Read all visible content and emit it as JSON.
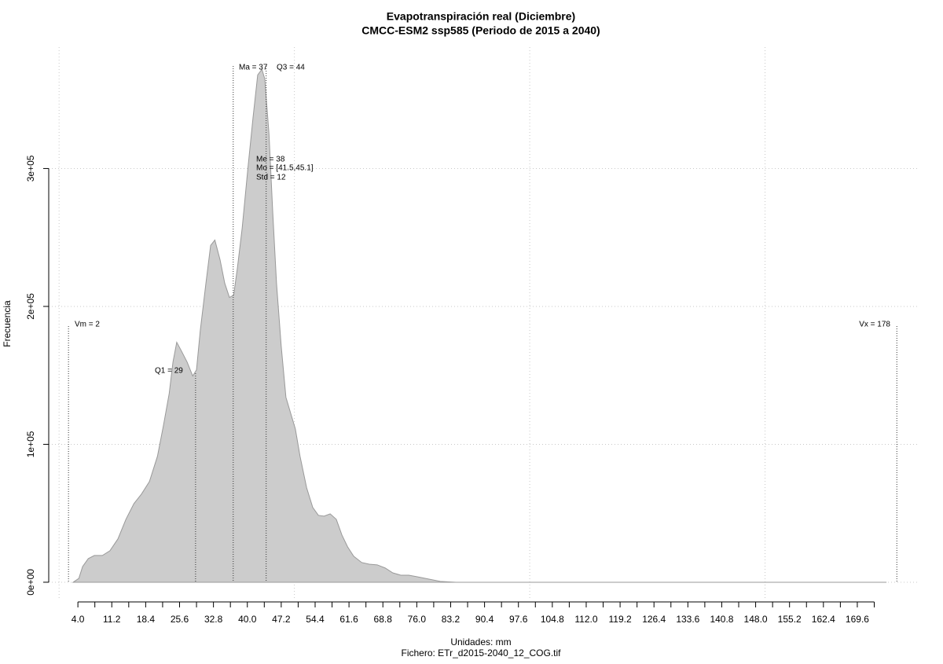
{
  "chart_data": {
    "type": "area",
    "title": "Evapotranspiración real (Diciembre)",
    "subtitle": "CMCC-ESM2 ssp585 (Periodo de 2015 a 2040)",
    "x_label": "Unidades: mm",
    "caption": "Fichero: ETr_d2015-2040_12_COG.tif",
    "y_label": "Frecuencia",
    "color": "#cccccc",
    "x": [
      3.0,
      4.2,
      5.0,
      6.2,
      7.5,
      9.2,
      10.8,
      12.5,
      14.2,
      15.9,
      17.5,
      19.2,
      20.9,
      22.2,
      23.4,
      24.2,
      25.0,
      25.9,
      27.2,
      28.4,
      29.2,
      30.0,
      31.2,
      32.2,
      33.1,
      34.2,
      35.2,
      36.2,
      37.1,
      37.9,
      38.9,
      40.1,
      41.2,
      42.2,
      43.1,
      43.7,
      44.6,
      45.4,
      46.2,
      47.2,
      48.2,
      49.2,
      50.2,
      51.2,
      52.6,
      53.9,
      55.1,
      56.3,
      57.6,
      58.9,
      60.1,
      61.3,
      62.6,
      64.3,
      65.9,
      67.6,
      69.3,
      70.9,
      72.6,
      74.3,
      76.0,
      78.5,
      81.0,
      84.3,
      91.0,
      104.3,
      137.7,
      175.8
    ],
    "values": [
      0,
      2800,
      11400,
      17100,
      19400,
      19400,
      22800,
      31400,
      45600,
      57000,
      63900,
      73000,
      91300,
      114100,
      136900,
      159700,
      174000,
      168300,
      159700,
      149500,
      154000,
      182500,
      216800,
      244200,
      248100,
      233900,
      216800,
      206500,
      208200,
      228200,
      256700,
      299500,
      336600,
      367900,
      371900,
      365100,
      325200,
      268100,
      216800,
      171100,
      134100,
      122600,
      111200,
      91300,
      68500,
      54200,
      48500,
      47900,
      49600,
      45600,
      34200,
      25700,
      18800,
      14300,
      13100,
      12600,
      10300,
      6800,
      5100,
      5100,
      4000,
      2300,
      600,
      0,
      0,
      0,
      0,
      0
    ],
    "xlim": [
      -2.2,
      182.8
    ],
    "ylim": [
      -12000,
      388000
    ],
    "xticks": [
      {
        "value": 4.0,
        "label": "4.0"
      },
      11.2,
      18.4,
      25.6,
      32.8,
      {
        "value": 40.0,
        "label": "40.0"
      },
      47.2,
      54.4,
      61.6,
      68.8,
      {
        "value": 76.0,
        "label": "76.0"
      },
      83.2,
      90.4,
      97.6,
      104.8,
      {
        "value": 112.0,
        "label": "112.0"
      },
      119.2,
      126.4,
      133.6,
      140.8,
      {
        "value": 148.0,
        "label": "148.0"
      },
      155.2,
      162.4,
      169.6
    ],
    "xminorticks": [
      7.6,
      14.8,
      22.0,
      29.2,
      36.4,
      43.6,
      50.8,
      58.0,
      65.2,
      72.4,
      79.6,
      86.8,
      94.0,
      101.2,
      108.4,
      115.6,
      122.8,
      130.0,
      137.2,
      144.4,
      151.6,
      158.8,
      166.0,
      173.2
    ],
    "yticks": [
      {
        "value": 0,
        "label": "0e+00"
      },
      {
        "value": 100000,
        "label": "1e+05"
      },
      {
        "value": 200000,
        "label": "2e+05"
      },
      {
        "value": 300000,
        "label": "3e+05"
      }
    ],
    "xgrid": [
      0,
      50,
      100,
      150
    ],
    "grid": true,
    "annotations": [
      {
        "label": "Vm = 2",
        "x": 2
      },
      {
        "label": "Q1 = 29",
        "x": 29
      },
      {
        "label": "Ma = 37",
        "x": 37
      },
      {
        "label": "Q3 = 44",
        "x": 44
      },
      {
        "label": "Me = 38"
      },
      {
        "label": "Mo = [41.5,45.1]"
      },
      {
        "label": "Std = 12"
      },
      {
        "label": "Vx = 178",
        "x": 178
      }
    ]
  }
}
